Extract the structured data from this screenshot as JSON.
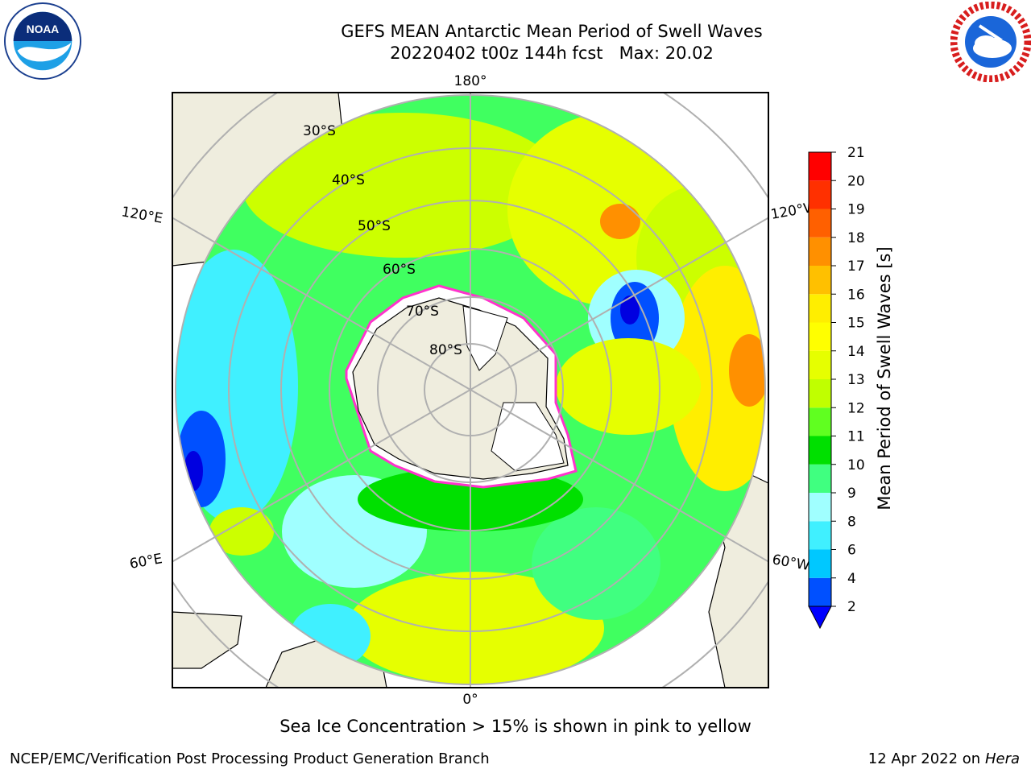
{
  "title_line1": "GEFS MEAN Antarctic Mean Period of Swell Waves",
  "title_line2": "20220402 t00z 144h fcst   Max: 20.02",
  "footer_note": "Sea Ice Concentration > 15% is shown in pink to yellow",
  "credit_left": "NCEP/EMC/Verification Post Processing Product Generation Branch",
  "credit_date": "12 Apr 2022 on ",
  "credit_host": "Hera",
  "logos": {
    "left": "NOAA",
    "right": "National Weather Service"
  },
  "noaa_wordmark": "NOAA",
  "map": {
    "projection": "south-polar-stereographic",
    "lon_labels": {
      "top": "180°",
      "bottom": "0°",
      "left_upper": "120°E",
      "left_lower": "60°E",
      "right_upper": "120°W",
      "right_lower": "60°W"
    },
    "lat_labels": [
      "30°S",
      "40°S",
      "50°S",
      "60°S",
      "70°S",
      "80°S"
    ],
    "land_color": "#efedde",
    "ice_color": "#ffffff",
    "ice_edge_colors": [
      "#ff33cc",
      "#ffaa00",
      "#ffff00"
    ]
  },
  "colorbar": {
    "label": "Mean Period of Swell Waves [s]",
    "ticks": [
      "2",
      "4",
      "6",
      "8",
      "9",
      "10",
      "11",
      "12",
      "13",
      "14",
      "15",
      "16",
      "17",
      "18",
      "19",
      "20",
      "21"
    ],
    "colors": [
      "#0050ff",
      "#00c8ff",
      "#40f0ff",
      "#a0ffff",
      "#40ff80",
      "#00e000",
      "#60ff20",
      "#c0ff00",
      "#e6ff00",
      "#ffff00",
      "#ffee00",
      "#ffc000",
      "#ff9000",
      "#ff6000",
      "#ff3000",
      "#ff0000"
    ],
    "under_color": "#0000ff"
  }
}
